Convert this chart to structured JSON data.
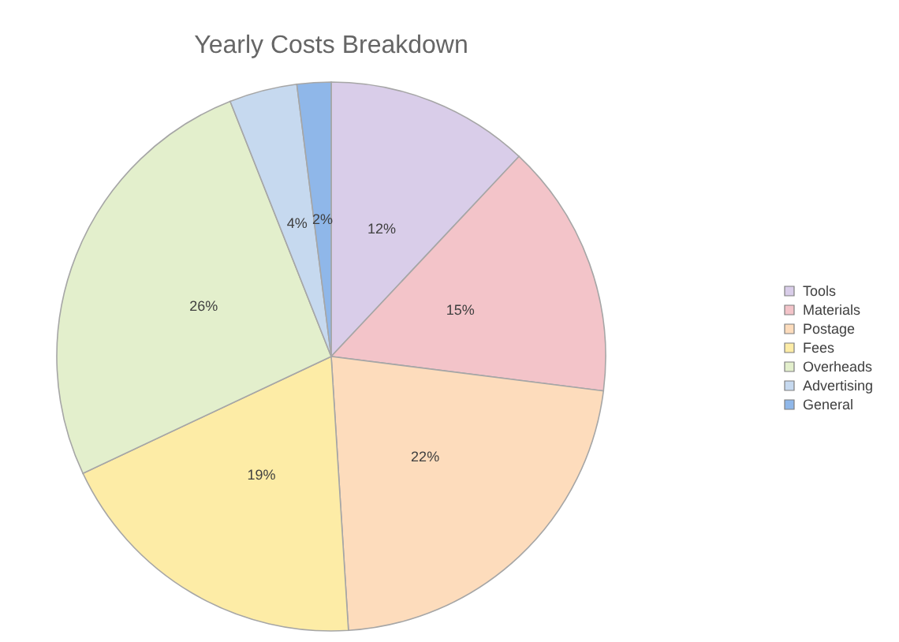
{
  "chart_data": {
    "type": "pie",
    "title": "Yearly Costs Breakdown",
    "categories": [
      "Tools",
      "Materials",
      "Postage",
      "Fees",
      "Overheads",
      "Advertising",
      "General"
    ],
    "values": [
      12,
      15,
      22,
      19,
      26,
      4,
      2
    ],
    "value_labels": [
      "12%",
      "15%",
      "22%",
      "19%",
      "26%",
      "4%",
      "2%"
    ],
    "colors": [
      "#d9cde9",
      "#f3c4c9",
      "#fddcbc",
      "#fdeca6",
      "#e3efcc",
      "#c6d9ef",
      "#8fb7e9"
    ],
    "legend": "right"
  }
}
